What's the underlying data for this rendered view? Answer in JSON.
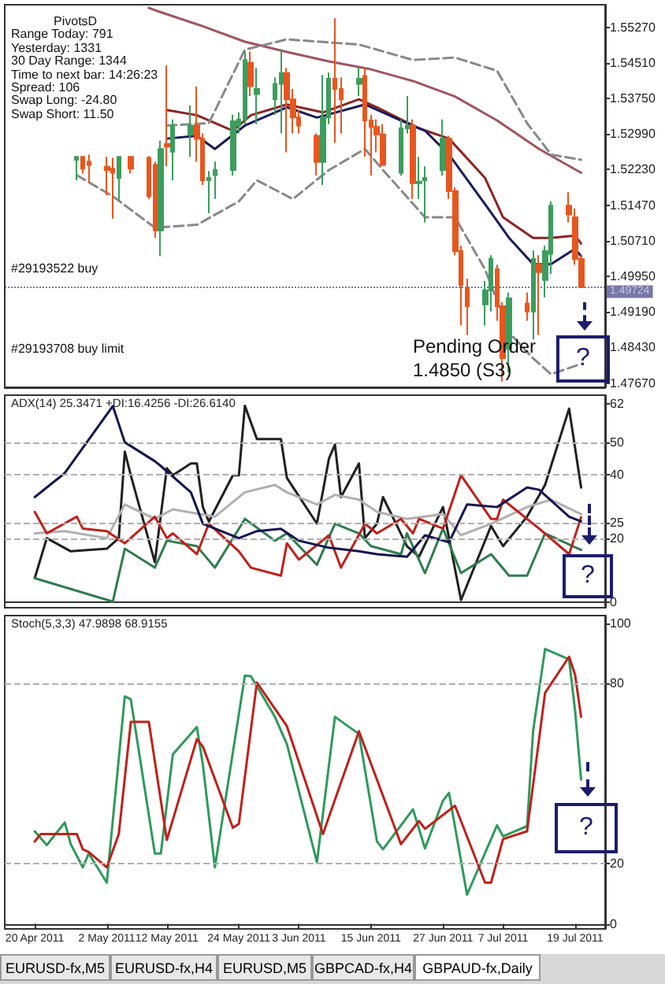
{
  "chart_data": [
    {
      "type": "candlestick",
      "xlim": [
        "2011-04-15",
        "2011-07-24"
      ],
      "ylim": [
        1.4758,
        1.5575
      ],
      "tick_labels": "y",
      "marker": "none",
      "yticks": [
        {
          "value": 1.5527,
          "label": "1.55270"
        },
        {
          "value": 1.5451,
          "label": "1.54510"
        },
        {
          "value": 1.5375,
          "label": "1.53750"
        },
        {
          "value": 1.5299,
          "label": "1.52990"
        },
        {
          "value": 1.5223,
          "label": "1.52230"
        },
        {
          "value": 1.5147,
          "label": "1.51470"
        },
        {
          "value": 1.5071,
          "label": "1.50710"
        },
        {
          "value": 1.4995,
          "label": "1.49950"
        },
        {
          "value": 1.4919,
          "label": "1.49190"
        },
        {
          "value": 1.4843,
          "label": "1.48430"
        },
        {
          "value": 1.4767,
          "label": "1.47670"
        }
      ],
      "x": [
        "2011-04-27",
        "2011-04-28",
        "2011-04-29",
        "2011-05-02",
        "2011-05-03",
        "2011-05-04",
        "2011-05-06",
        "2011-05-09",
        "2011-05-10",
        "2011-05-11",
        "2011-05-12",
        "2011-05-13",
        "2011-05-16",
        "2011-05-17",
        "2011-05-18",
        "2011-05-19",
        "2011-05-20",
        "2011-05-23",
        "2011-05-24",
        "2011-05-25",
        "2011-05-26",
        "2011-05-27",
        "2011-05-30",
        "2011-05-31",
        "2011-06-01",
        "2011-06-02",
        "2011-06-03",
        "2011-06-06",
        "2011-06-07",
        "2011-06-08",
        "2011-06-09",
        "2011-06-10",
        "2011-06-13",
        "2011-06-14",
        "2011-06-15",
        "2011-06-16",
        "2011-06-17",
        "2011-06-20",
        "2011-06-21",
        "2011-06-22",
        "2011-06-23",
        "2011-06-24",
        "2011-06-27",
        "2011-06-28",
        "2011-06-29",
        "2011-06-30",
        "2011-07-01",
        "2011-07-04",
        "2011-07-05",
        "2011-07-06",
        "2011-07-07",
        "2011-07-08",
        "2011-07-11",
        "2011-07-12",
        "2011-07-13",
        "2011-07-14",
        "2011-07-15",
        "2011-07-18",
        "2011-07-19",
        "2011-07-20"
      ],
      "ohlc": [
        [
          1.5244,
          1.5252,
          1.52,
          1.525
        ],
        [
          1.525,
          1.5252,
          1.5215,
          1.5225
        ],
        [
          1.524,
          1.5255,
          1.5195,
          1.5233
        ],
        [
          1.5229,
          1.525,
          1.5168,
          1.5222
        ],
        [
          1.5225,
          1.5248,
          1.5118,
          1.5216
        ],
        [
          1.5205,
          1.5252,
          1.5155,
          1.525
        ],
        [
          1.525,
          1.5252,
          1.5215,
          1.5225
        ],
        [
          1.5248,
          1.5252,
          1.516,
          1.5166
        ],
        [
          1.5233,
          1.524,
          1.5077,
          1.5093
        ],
        [
          1.5093,
          1.5285,
          1.5038,
          1.5267
        ],
        [
          1.5278,
          1.5445,
          1.523,
          1.5272
        ],
        [
          1.5261,
          1.533,
          1.52,
          1.5317
        ],
        [
          1.5298,
          1.536,
          1.525,
          1.5317
        ],
        [
          1.5317,
          1.54,
          1.524,
          1.5289
        ],
        [
          1.5289,
          1.53,
          1.519,
          1.52
        ],
        [
          1.52,
          1.522,
          1.513,
          1.5205
        ],
        [
          1.5211,
          1.524,
          1.516,
          1.5222
        ],
        [
          1.5222,
          1.534,
          1.521,
          1.5326
        ],
        [
          1.5317,
          1.5345,
          1.53,
          1.533
        ],
        [
          1.533,
          1.5475,
          1.532,
          1.5457
        ],
        [
          1.5451,
          1.5475,
          1.538,
          1.5401
        ],
        [
          1.5384,
          1.544,
          1.532,
          1.5395
        ],
        [
          1.5373,
          1.542,
          1.534,
          1.5406
        ],
        [
          1.5406,
          1.548,
          1.53,
          1.5429
        ],
        [
          1.5429,
          1.544,
          1.526,
          1.5373
        ],
        [
          1.5373,
          1.5395,
          1.53,
          1.5334
        ],
        [
          1.5334,
          1.535,
          1.53,
          1.5317
        ],
        [
          1.5295,
          1.53,
          1.521,
          1.5239
        ],
        [
          1.5239,
          1.5425,
          1.519,
          1.5334
        ],
        [
          1.5334,
          1.543,
          1.532,
          1.5417
        ],
        [
          1.5417,
          1.5546,
          1.528,
          1.5395
        ],
        [
          1.5395,
          1.542,
          1.53,
          1.5373
        ],
        [
          1.5406,
          1.544,
          1.538,
          1.5417
        ],
        [
          1.5423,
          1.544,
          1.525,
          1.5328
        ],
        [
          1.5328,
          1.534,
          1.521,
          1.5314
        ],
        [
          1.5314,
          1.533,
          1.526,
          1.5298
        ],
        [
          1.5298,
          1.532,
          1.523,
          1.5233
        ],
        [
          1.5216,
          1.533,
          1.521,
          1.5311
        ],
        [
          1.5311,
          1.538,
          1.53,
          1.5317
        ],
        [
          1.5317,
          1.533,
          1.516,
          1.5194
        ],
        [
          1.5194,
          1.525,
          1.516,
          1.5197
        ],
        [
          1.52,
          1.523,
          1.511,
          1.5205
        ],
        [
          1.5222,
          1.533,
          1.521,
          1.5289
        ],
        [
          1.5289,
          1.5295,
          1.516,
          1.5177
        ],
        [
          1.5177,
          1.5185,
          1.504,
          1.5049
        ],
        [
          1.5049,
          1.506,
          1.489,
          1.4976
        ],
        [
          1.497,
          1.499,
          1.487,
          1.4931
        ],
        [
          1.4935,
          1.4985,
          1.489,
          1.4965
        ],
        [
          1.4965,
          1.504,
          1.492,
          1.5032
        ],
        [
          1.501,
          1.502,
          1.49,
          1.4931
        ],
        [
          1.4931,
          1.494,
          1.477,
          1.482
        ],
        [
          1.484,
          1.496,
          1.479,
          1.4948
        ],
        [
          1.4937,
          1.496,
          1.49,
          1.492
        ],
        [
          1.492,
          1.505,
          1.486,
          1.5032
        ],
        [
          1.5021,
          1.504,
          1.487,
          1.5004
        ],
        [
          1.4987,
          1.506,
          1.495,
          1.5049
        ],
        [
          1.5043,
          1.5155,
          1.5,
          1.5146
        ],
        [
          1.5146,
          1.5175,
          1.511,
          1.5127
        ],
        [
          1.5121,
          1.514,
          1.502,
          1.5032
        ],
        [
          1.5032,
          1.504,
          1.497,
          1.4972
        ]
      ],
      "colors": [
        "#3c9d5d",
        "#e8561f",
        "#e8561f",
        "#e8561f",
        "#e8561f",
        "#3c9d5d",
        "#e8561f",
        "#e8561f",
        "#e8561f",
        "#3c9d5d",
        "#e8561f",
        "#3c9d5d",
        "#3c9d5d",
        "#e8561f",
        "#e8561f",
        "#3c9d5d",
        "#3c9d5d",
        "#3c9d5d",
        "#3c9d5d",
        "#3c9d5d",
        "#e8561f",
        "#3c9d5d",
        "#3c9d5d",
        "#3c9d5d",
        "#e8561f",
        "#e8561f",
        "#e8561f",
        "#e8561f",
        "#3c9d5d",
        "#3c9d5d",
        "#e8561f",
        "#e8561f",
        "#3c9d5d",
        "#e8561f",
        "#e8561f",
        "#e8561f",
        "#e8561f",
        "#3c9d5d",
        "#3c9d5d",
        "#e8561f",
        "#3c9d5d",
        "#3c9d5d",
        "#3c9d5d",
        "#e8561f",
        "#e8561f",
        "#e8561f",
        "#e8561f",
        "#3c9d5d",
        "#3c9d5d",
        "#e8561f",
        "#e8561f",
        "#3c9d5d",
        "#e8561f",
        "#3c9d5d",
        "#e8561f",
        "#3c9d5d",
        "#3c9d5d",
        "#e8561f",
        "#e8561f",
        "#e8561f"
      ],
      "series": [
        {
          "type": "line",
          "color": "#a05560",
          "x": [
            "2011-05-09",
            "2011-05-11",
            "2011-05-18",
            "2011-05-25",
            "2011-06-01",
            "2011-06-08",
            "2011-06-15",
            "2011-06-22",
            "2011-06-29",
            "2011-07-06",
            "2011-07-13",
            "2011-07-20"
          ],
          "values": [
            1.5568,
            1.5559,
            1.5529,
            1.5496,
            1.5474,
            1.5454,
            1.5437,
            1.5412,
            1.5379,
            1.5328,
            1.5267,
            1.5216
          ]
        },
        {
          "type": "line",
          "color": "#8e2424",
          "x": [
            "2011-05-12",
            "2011-05-17",
            "2011-05-23",
            "2011-05-26",
            "2011-06-01",
            "2011-06-07",
            "2011-06-13",
            "2011-06-16",
            "2011-06-23",
            "2011-06-28",
            "2011-07-04",
            "2011-07-07",
            "2011-07-12",
            "2011-07-15",
            "2011-07-19",
            "2011-07-20"
          ],
          "values": [
            1.535,
            1.5339,
            1.5306,
            1.5339,
            1.5362,
            1.5345,
            1.5373,
            1.5356,
            1.5311,
            1.5289,
            1.5205,
            1.5121,
            1.5077,
            1.5077,
            1.5082,
            1.5065
          ]
        },
        {
          "type": "line",
          "color": "#1a1a5e",
          "x": [
            "2011-05-12",
            "2011-05-17",
            "2011-05-20",
            "2011-05-25",
            "2011-06-01",
            "2011-06-06",
            "2011-06-14",
            "2011-06-21",
            "2011-06-24",
            "2011-06-28",
            "2011-07-04",
            "2011-07-08",
            "2011-07-12",
            "2011-07-15",
            "2011-07-19",
            "2011-07-20"
          ],
          "values": [
            1.5289,
            1.5295,
            1.5267,
            1.5317,
            1.5356,
            1.5334,
            1.5362,
            1.5322,
            1.5306,
            1.5255,
            1.5149,
            1.5077,
            1.5021,
            1.5021,
            1.5054,
            1.5038
          ]
        },
        {
          "type": "line",
          "color": "#888888",
          "line_style": "dashed",
          "x": [
            "2011-05-12",
            "2011-05-19",
            "2011-05-25",
            "2011-06-01",
            "2011-06-13",
            "2011-06-22",
            "2011-06-29",
            "2011-07-06",
            "2011-07-11",
            "2011-07-15",
            "2011-07-20"
          ],
          "values": [
            1.5317,
            1.5322,
            1.5479,
            1.5501,
            1.549,
            1.5457,
            1.5462,
            1.5434,
            1.5322,
            1.5255,
            1.5244
          ]
        },
        {
          "type": "line",
          "color": "#888888",
          "line_style": "dashed",
          "x": [
            "2011-04-27",
            "2011-05-03",
            "2011-05-10",
            "2011-05-17",
            "2011-05-24",
            "2011-05-27",
            "2011-06-02",
            "2011-06-08",
            "2011-06-14",
            "2011-06-17",
            "2011-06-24",
            "2011-06-29",
            "2011-07-04",
            "2011-07-08",
            "2011-07-12",
            "2011-07-15",
            "2011-07-20"
          ],
          "values": [
            1.5211,
            1.5166,
            1.5099,
            1.5105,
            1.5155,
            1.52,
            1.516,
            1.5222,
            1.5267,
            1.5222,
            1.5121,
            1.5121,
            1.501,
            1.4875,
            1.482,
            1.4786,
            1.4808
          ]
        }
      ],
      "ref_lines": [
        {
          "axis": "y",
          "value": 1.49724,
          "label": "1.49724",
          "color": "#1c1c6e",
          "line_style": "dotted"
        }
      ],
      "annotations": [
        "PivotsD",
        "Range Today: 791",
        "Yesterday: 1331",
        "30 Day Range: 1344",
        "Time to next bar: 14:26:23",
        "Spread: 106",
        "Swap Long: -24.80",
        "Swap Short: 11.50",
        "#29193522 buy",
        "#29193708 buy limit",
        "Pending Order",
        "1.4850 (S3)",
        "?"
      ]
    },
    {
      "type": "line",
      "title": "ADX(14) 25.3471 +DI:16.4256 -DI:26.6140",
      "xlim": [
        "2011-04-15",
        "2011-07-24"
      ],
      "ylim": [
        -1.6,
        64.7
      ],
      "yticks": [
        62,
        50,
        40,
        25,
        20,
        0
      ],
      "tick_labels": "y",
      "marker": "none",
      "series": [
        {
          "color": "#202020",
          "x": [
            "2011-04-20",
            "2011-04-22",
            "2011-04-26",
            "2011-05-02",
            "2011-05-04",
            "2011-05-05",
            "2011-05-06",
            "2011-05-10",
            "2011-05-12",
            "2011-05-13",
            "2011-05-16",
            "2011-05-17",
            "2011-05-18",
            "2011-05-19",
            "2011-05-23",
            "2011-05-24",
            "2011-05-25",
            "2011-05-27",
            "2011-05-31",
            "2011-06-01",
            "2011-06-06",
            "2011-06-08",
            "2011-06-09",
            "2011-06-10",
            "2011-06-13",
            "2011-06-14",
            "2011-06-16",
            "2011-06-17",
            "2011-06-21",
            "2011-06-23",
            "2011-06-27",
            "2011-06-30",
            "2011-07-05",
            "2011-07-07",
            "2011-07-11",
            "2011-07-14",
            "2011-07-18",
            "2011-07-20"
          ],
          "values": [
            7.6,
            20.1,
            16,
            16.8,
            20.1,
            47.1,
            39.7,
            12.6,
            41.9,
            39.7,
            43.4,
            43.4,
            29.8,
            25.3,
            39.7,
            39.7,
            61.4,
            51,
            51,
            38.9,
            24.6,
            44.9,
            49.3,
            32.9,
            43.4,
            20.1,
            24.6,
            32.9,
            17.6,
            14.3,
            29.8,
            0.8,
            23.9,
            17.6,
            26.8,
            36.7,
            60.5,
            35.9
          ]
        },
        {
          "color": "#b0b0b0",
          "x": [
            "2011-04-20",
            "2011-04-25",
            "2011-05-02",
            "2011-05-05",
            "2011-05-10",
            "2011-05-13",
            "2011-05-20",
            "2011-05-25",
            "2011-05-30",
            "2011-06-01",
            "2011-06-06",
            "2011-06-09",
            "2011-06-13",
            "2011-06-16",
            "2011-06-21",
            "2011-06-27",
            "2011-06-30",
            "2011-07-05",
            "2011-07-11",
            "2011-07-15",
            "2011-07-20"
          ],
          "values": [
            21.6,
            22.3,
            20.1,
            30.6,
            26.1,
            29.1,
            26.8,
            34.4,
            36.7,
            34.4,
            30.6,
            33.6,
            32.1,
            28.3,
            26.1,
            27.6,
            21,
            24.6,
            29.8,
            32.1,
            27.6
          ]
        },
        {
          "color": "#2e7d4f",
          "x": [
            "2011-04-20",
            "2011-05-03",
            "2011-05-05",
            "2011-05-10",
            "2011-05-12",
            "2011-05-17",
            "2011-05-20",
            "2011-05-25",
            "2011-05-30",
            "2011-06-01",
            "2011-06-06",
            "2011-06-09",
            "2011-06-13",
            "2011-06-15",
            "2011-06-20",
            "2011-06-21",
            "2011-06-24",
            "2011-06-27",
            "2011-06-30",
            "2011-07-05",
            "2011-07-08",
            "2011-07-11",
            "2011-07-14",
            "2011-07-20"
          ],
          "values": [
            7.6,
            0.3,
            16.8,
            10.9,
            19.3,
            17.6,
            10.9,
            26.1,
            19.3,
            21.6,
            11.8,
            24.6,
            21.6,
            17.6,
            15.1,
            21.6,
            9.2,
            23.1,
            9.2,
            15.1,
            8.4,
            8.4,
            21.6,
            16.4
          ]
        },
        {
          "color": "#c0201a",
          "x": [
            "2011-04-20",
            "2011-04-22",
            "2011-04-27",
            "2011-04-28",
            "2011-05-02",
            "2011-05-05",
            "2011-05-10",
            "2011-05-12",
            "2011-05-13",
            "2011-05-17",
            "2011-05-19",
            "2011-05-24",
            "2011-05-26",
            "2011-05-31",
            "2011-06-01",
            "2011-06-03",
            "2011-06-08",
            "2011-06-10",
            "2011-06-14",
            "2011-06-16",
            "2011-06-20",
            "2011-06-22",
            "2011-06-23",
            "2011-06-27",
            "2011-06-30",
            "2011-07-05",
            "2011-07-06",
            "2011-07-07",
            "2011-07-13",
            "2011-07-18",
            "2011-07-20"
          ],
          "values": [
            28.3,
            21.6,
            26.8,
            23.1,
            22.3,
            18.5,
            26.8,
            20.1,
            21.6,
            15.1,
            24.6,
            16,
            10.9,
            8.4,
            18.5,
            13.4,
            21,
            10.9,
            24.6,
            21.6,
            26.1,
            21.6,
            26.1,
            23.1,
            39.7,
            26.1,
            26.1,
            32.1,
            23.1,
            15.1,
            26.6
          ]
        },
        {
          "color": "#141450",
          "x": [
            "2011-04-20",
            "2011-04-25",
            "2011-05-03",
            "2011-05-05",
            "2011-05-10",
            "2011-05-11",
            "2011-05-16",
            "2011-05-18",
            "2011-05-24",
            "2011-05-27",
            "2011-05-31",
            "2011-06-03",
            "2011-06-08",
            "2011-06-13",
            "2011-06-16",
            "2011-06-21",
            "2011-06-24",
            "2011-06-28",
            "2011-07-01",
            "2011-07-06",
            "2011-07-11",
            "2011-07-13",
            "2011-07-18",
            "2011-07-20"
          ],
          "values": [
            32.9,
            40.4,
            61.3,
            50,
            44.1,
            42.6,
            34.4,
            24.6,
            20.1,
            22.3,
            23,
            19.3,
            17.1,
            16,
            15.1,
            14.3,
            21,
            18.8,
            30.6,
            29.8,
            35.9,
            35.2,
            26.8,
            25.3
          ]
        }
      ],
      "ref_lines": [
        {
          "axis": "y",
          "value": 50,
          "color": "#b0b0b0",
          "line_style": "dashed"
        },
        {
          "axis": "y",
          "value": 40,
          "color": "#b0b0b0",
          "line_style": "dashed"
        },
        {
          "axis": "y",
          "value": 25,
          "color": "#b0b0b0",
          "line_style": "dashed"
        },
        {
          "axis": "y",
          "value": 20,
          "color": "#b0b0b0",
          "line_style": "dashed"
        }
      ],
      "annotations": [
        "?"
      ]
    },
    {
      "type": "line",
      "title": "Stoch(5,3,3) 47.9898 68.9155",
      "xlim": [
        "2011-04-15",
        "2011-07-24"
      ],
      "ylim": [
        -1.7,
        102.6
      ],
      "yticks": [
        100,
        80,
        20,
        0
      ],
      "marker": "none",
      "xticks": [
        {
          "value": "2011-04-20",
          "label": "20 Apr 2011"
        },
        {
          "value": "2011-05-02",
          "label": "2 May 2011"
        },
        {
          "value": "2011-05-12",
          "label": "12 May 2011"
        },
        {
          "value": "2011-05-24",
          "label": "24 May 2011"
        },
        {
          "value": "2011-06-03",
          "label": "3 Jun 2011"
        },
        {
          "value": "2011-06-15",
          "label": "15 Jun 2011"
        },
        {
          "value": "2011-06-27",
          "label": "27 Jun 2011"
        },
        {
          "value": "2011-07-07",
          "label": "7 Jul 2011"
        },
        {
          "value": "2011-07-19",
          "label": "19 Jul 2011"
        }
      ],
      "series": [
        {
          "color": "#2e9a5c",
          "x": [
            "2011-04-20",
            "2011-04-22",
            "2011-04-25",
            "2011-04-26",
            "2011-04-28",
            "2011-04-29",
            "2011-05-02",
            "2011-05-05",
            "2011-05-06",
            "2011-05-10",
            "2011-05-11",
            "2011-05-13",
            "2011-05-17",
            "2011-05-18",
            "2011-05-20",
            "2011-05-25",
            "2011-05-26",
            "2011-05-30",
            "2011-06-01",
            "2011-06-06",
            "2011-06-09",
            "2011-06-13",
            "2011-06-16",
            "2011-06-17",
            "2011-06-22",
            "2011-06-24",
            "2011-06-27",
            "2011-06-28",
            "2011-07-01",
            "2011-07-06",
            "2011-07-07",
            "2011-07-11",
            "2011-07-12",
            "2011-07-14",
            "2011-07-18",
            "2011-07-19",
            "2011-07-20"
          ],
          "values": [
            30.8,
            26.2,
            33.7,
            26.5,
            18.8,
            23.4,
            13.7,
            75.7,
            74.7,
            23.4,
            23.4,
            56.4,
            65.5,
            53,
            18.8,
            82.6,
            82.4,
            68.9,
            59.8,
            20.5,
            68.9,
            63.2,
            27.4,
            24.8,
            38.1,
            25.1,
            41,
            43.6,
            9.7,
            32.8,
            29.1,
            32.5,
            64.1,
            91.5,
            88,
            70.9,
            48
          ]
        },
        {
          "color": "#c0201a",
          "x": [
            "2011-04-20",
            "2011-04-21",
            "2011-04-27",
            "2011-04-28",
            "2011-04-29",
            "2011-05-02",
            "2011-05-04",
            "2011-05-06",
            "2011-05-09",
            "2011-05-12",
            "2011-05-17",
            "2011-05-18",
            "2011-05-23",
            "2011-05-24",
            "2011-05-27",
            "2011-06-01",
            "2011-06-07",
            "2011-06-13",
            "2011-06-20",
            "2011-06-23",
            "2011-06-24",
            "2011-06-29",
            "2011-07-04",
            "2011-07-05",
            "2011-07-07",
            "2011-07-11",
            "2011-07-14",
            "2011-07-18",
            "2011-07-19",
            "2011-07-20"
          ],
          "values": [
            27.4,
            29.9,
            29.9,
            24.8,
            23.9,
            18.8,
            29.9,
            67.2,
            67.2,
            27.9,
            61.5,
            59,
            32,
            33.3,
            80.3,
            65.8,
            29.9,
            64.1,
            26.5,
            34.2,
            31.6,
            39.3,
            13.7,
            13.7,
            28.2,
            30.8,
            76.9,
            88.9,
            82.9,
            68.9
          ]
        }
      ],
      "ref_lines": [
        {
          "axis": "y",
          "value": 80,
          "color": "#b0b0b0",
          "line_style": "dashed"
        },
        {
          "axis": "y",
          "value": 20,
          "color": "#b0b0b0",
          "line_style": "dashed"
        }
      ],
      "annotations": [
        "?",
        "EURUSD-fx,M5",
        "EURUSD-fx,H4",
        "EURUSD,M5",
        "GBPCAD-fx,H4",
        "GBPAUD-fx,Daily"
      ]
    }
  ]
}
